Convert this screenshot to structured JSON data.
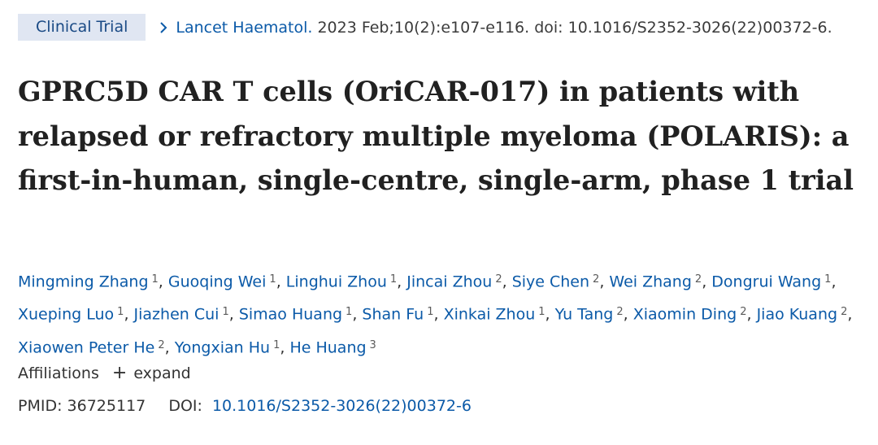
{
  "article_type": "Clinical Trial",
  "journal": "Lancet Haematol.",
  "citation": "2023 Feb;10(2):e107-e116. doi: 10.1016/S2352-3026(22)00372-6.",
  "title": "GPRC5D CAR T cells (OriCAR-017) in patients with relapsed or refractory multiple myeloma (POLARIS): a first-in-human, single-centre, single-arm, phase 1 trial",
  "authors": [
    {
      "name": "Mingming Zhang",
      "aff": "1"
    },
    {
      "name": "Guoqing Wei",
      "aff": "1"
    },
    {
      "name": "Linghui Zhou",
      "aff": "1"
    },
    {
      "name": "Jincai Zhou",
      "aff": "2"
    },
    {
      "name": "Siye Chen",
      "aff": "2"
    },
    {
      "name": "Wei Zhang",
      "aff": "2"
    },
    {
      "name": "Dongrui Wang",
      "aff": "1"
    },
    {
      "name": "Xueping Luo",
      "aff": "1"
    },
    {
      "name": "Jiazhen Cui",
      "aff": "1"
    },
    {
      "name": "Simao Huang",
      "aff": "1"
    },
    {
      "name": "Shan Fu",
      "aff": "1"
    },
    {
      "name": "Xinkai Zhou",
      "aff": "1"
    },
    {
      "name": "Yu Tang",
      "aff": "2"
    },
    {
      "name": "Xiaomin Ding",
      "aff": "2"
    },
    {
      "name": "Jiao Kuang",
      "aff": "2"
    },
    {
      "name": "Xiaowen Peter He",
      "aff": "2"
    },
    {
      "name": "Yongxian Hu",
      "aff": "1"
    },
    {
      "name": "He Huang",
      "aff": "3"
    }
  ],
  "affiliations": {
    "label": "Affiliations",
    "expand_symbol": "+",
    "expand_label": "expand"
  },
  "ids": {
    "pmid_label": "PMID:",
    "pmid": "36725117",
    "doi_label": "DOI:",
    "doi": "10.1016/S2352-3026(22)00372-6"
  }
}
